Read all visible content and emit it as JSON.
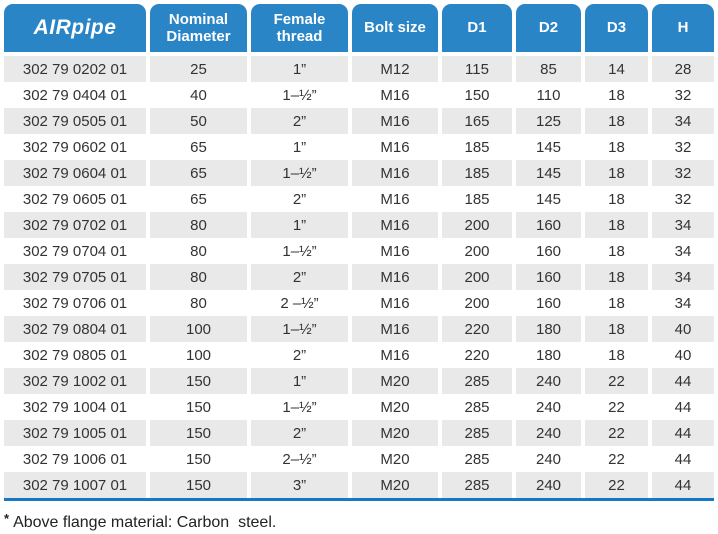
{
  "table": {
    "logo": {
      "bold": "AIR",
      "light": "pipe"
    },
    "headers": [
      "Nominal Diameter",
      "Female thread",
      "Bolt size",
      "D1",
      "D2",
      "D3",
      "H"
    ],
    "rows": [
      [
        "302 79 0202 01",
        "25",
        "1”",
        "M12",
        "115",
        "85",
        "14",
        "28"
      ],
      [
        "302 79 0404 01",
        "40",
        "1–½”",
        "M16",
        "150",
        "110",
        "18",
        "32"
      ],
      [
        "302 79 0505 01",
        "50",
        "2”",
        "M16",
        "165",
        "125",
        "18",
        "34"
      ],
      [
        "302 79 0602 01",
        "65",
        "1”",
        "M16",
        "185",
        "145",
        "18",
        "32"
      ],
      [
        "302 79 0604 01",
        "65",
        "1–½”",
        "M16",
        "185",
        "145",
        "18",
        "32"
      ],
      [
        "302 79 0605 01",
        "65",
        "2”",
        "M16",
        "185",
        "145",
        "18",
        "32"
      ],
      [
        "302 79 0702 01",
        "80",
        "1”",
        "M16",
        "200",
        "160",
        "18",
        "34"
      ],
      [
        "302 79 0704 01",
        "80",
        "1–½”",
        "M16",
        "200",
        "160",
        "18",
        "34"
      ],
      [
        "302 79 0705 01",
        "80",
        "2”",
        "M16",
        "200",
        "160",
        "18",
        "34"
      ],
      [
        "302 79 0706 01",
        "80",
        "2 –½”",
        "M16",
        "200",
        "160",
        "18",
        "34"
      ],
      [
        "302 79 0804 01",
        "100",
        "1–½”",
        "M16",
        "220",
        "180",
        "18",
        "40"
      ],
      [
        "302 79 0805 01",
        "100",
        "2”",
        "M16",
        "220",
        "180",
        "18",
        "40"
      ],
      [
        "302 79 1002 01",
        "150",
        "1”",
        "M20",
        "285",
        "240",
        "22",
        "44"
      ],
      [
        "302 79 1004 01",
        "150",
        "1–½”",
        "M20",
        "285",
        "240",
        "22",
        "44"
      ],
      [
        "302 79 1005 01",
        "150",
        "2”",
        "M20",
        "285",
        "240",
        "22",
        "44"
      ],
      [
        "302 79 1006 01",
        "150",
        "2–½”",
        "M20",
        "285",
        "240",
        "22",
        "44"
      ],
      [
        "302 79 1007 01",
        "150",
        "3”",
        "M20",
        "285",
        "240",
        "22",
        "44"
      ]
    ]
  },
  "footnote": {
    "marker": "*",
    "text": "Above flange material: Carbon  steel."
  },
  "colors": {
    "header_blue": "#2a85c6",
    "stripe_gray": "#e9e9e9",
    "rule_blue": "#1878c4",
    "text": "#333333"
  }
}
